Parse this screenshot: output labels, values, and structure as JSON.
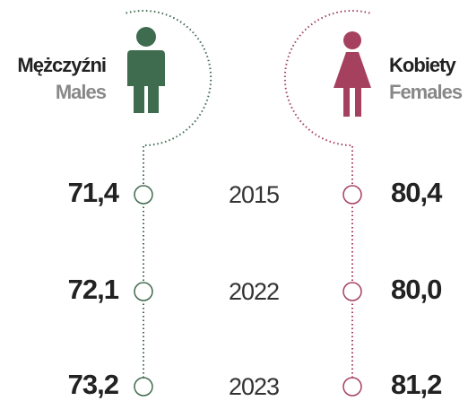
{
  "males": {
    "label_pl": "Mężczyźni",
    "label_en": "Males"
  },
  "females": {
    "label_pl": "Kobiety",
    "label_en": "Females"
  },
  "rows": [
    {
      "year": "2015",
      "male": "71,4",
      "female": "80,4"
    },
    {
      "year": "2022",
      "male": "72,1",
      "female": "80,0"
    },
    {
      "year": "2023",
      "male": "73,2",
      "female": "81,2"
    }
  ]
}
